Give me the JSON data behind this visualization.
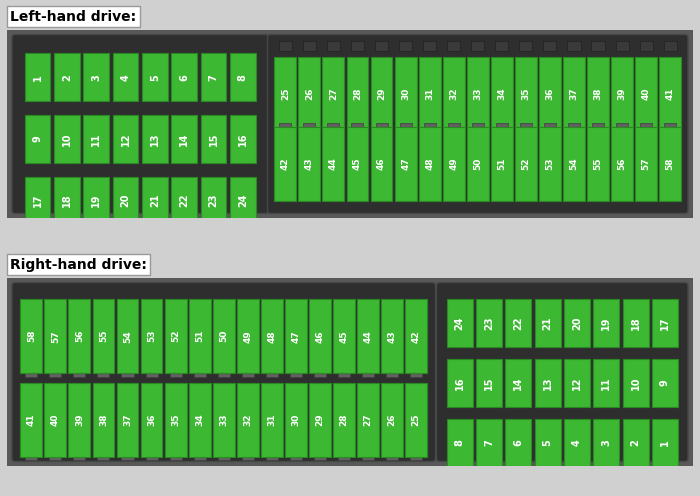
{
  "title_lhd": "Left-hand drive:",
  "title_rhd": "Right-hand drive:",
  "fuse_green": "#3cb832",
  "fuse_green_edge": "#2a8a22",
  "box_bg": "#505050",
  "box_bg2": "#3a3a3a",
  "inner_dark": "#252525",
  "connector_color": "#404040",
  "label_color": "#ffffff",
  "title_color": "#000000",
  "title_bg": "#ffffff",
  "title_border": "#aaaaaa",
  "fig_bg": "#d0d0d0",
  "lhd": {
    "left_rows": [
      [
        1,
        2,
        3,
        4,
        5,
        6,
        7,
        8
      ],
      [
        9,
        10,
        11,
        12,
        13,
        14,
        15,
        16
      ],
      [
        17,
        18,
        19,
        20,
        21,
        22,
        23,
        24
      ]
    ],
    "right_rows": [
      [
        25,
        26,
        27,
        28,
        29,
        30,
        31,
        32,
        33,
        34,
        35,
        36,
        37,
        38,
        39,
        40,
        41
      ],
      [
        42,
        43,
        44,
        45,
        46,
        47,
        48,
        49,
        50,
        51,
        52,
        53,
        54,
        55,
        56,
        57,
        58
      ]
    ]
  },
  "rhd": {
    "left_rows": [
      [
        58,
        57,
        56,
        55,
        54,
        53,
        52,
        51,
        50,
        49,
        48,
        47,
        46,
        45,
        44,
        43,
        42
      ],
      [
        41,
        40,
        39,
        38,
        37,
        36,
        35,
        34,
        33,
        32,
        31,
        30,
        29,
        28,
        27,
        26,
        25
      ]
    ],
    "right_rows": [
      [
        24,
        23,
        22,
        21,
        20,
        19,
        18,
        17
      ],
      [
        16,
        15,
        14,
        13,
        12,
        11,
        10,
        9
      ],
      [
        8,
        7,
        6,
        5,
        4,
        3,
        2,
        1
      ]
    ]
  }
}
